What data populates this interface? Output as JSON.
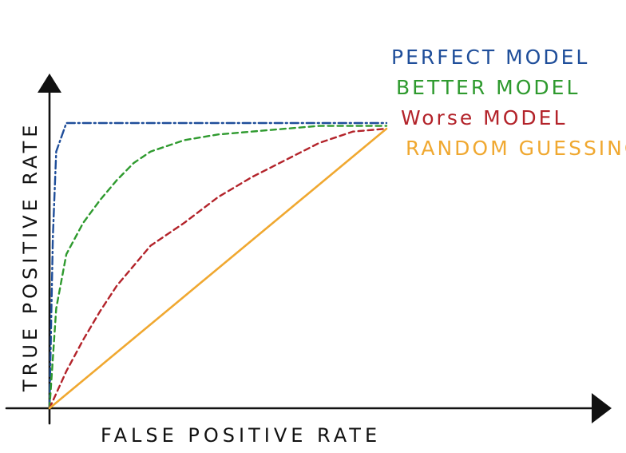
{
  "chart_data": {
    "type": "line",
    "title": "",
    "xlabel": "FALSE POSITIVE RATE",
    "ylabel": "TRUE POSITIVE RATE",
    "xlim": [
      0,
      1
    ],
    "ylim": [
      0,
      1
    ],
    "grid": false,
    "legend_position": "top-right",
    "series": [
      {
        "name": "PERFECT MODEL",
        "color": "#1f4e9a",
        "style": "dash-dot",
        "x": [
          0,
          0.005,
          0.01,
          0.02,
          0.05,
          0.2,
          0.5,
          0.8,
          0.95,
          1.0
        ],
        "y": [
          0,
          0.3,
          0.6,
          0.9,
          1.0,
          1.0,
          1.0,
          1.0,
          1.0,
          1.0
        ]
      },
      {
        "name": "BETTER MODEL",
        "color": "#2e9a2e",
        "style": "dashed",
        "x": [
          0,
          0.02,
          0.05,
          0.1,
          0.15,
          0.2,
          0.25,
          0.3,
          0.4,
          0.5,
          0.6,
          0.7,
          0.8,
          0.9,
          1.0
        ],
        "y": [
          0,
          0.35,
          0.54,
          0.65,
          0.73,
          0.8,
          0.86,
          0.9,
          0.94,
          0.96,
          0.97,
          0.98,
          0.99,
          0.99,
          0.99
        ]
      },
      {
        "name": "Worse MODEL",
        "color": "#b3232a",
        "style": "dashed",
        "x": [
          0,
          0.05,
          0.1,
          0.15,
          0.2,
          0.3,
          0.4,
          0.5,
          0.6,
          0.7,
          0.8,
          0.9,
          1.0
        ],
        "y": [
          0,
          0.13,
          0.24,
          0.34,
          0.43,
          0.57,
          0.65,
          0.74,
          0.81,
          0.87,
          0.93,
          0.97,
          0.98
        ]
      },
      {
        "name": "RANDOM GUESSING",
        "color": "#f0a830",
        "style": "solid",
        "x": [
          0,
          1
        ],
        "y": [
          0,
          0.98
        ]
      }
    ]
  }
}
